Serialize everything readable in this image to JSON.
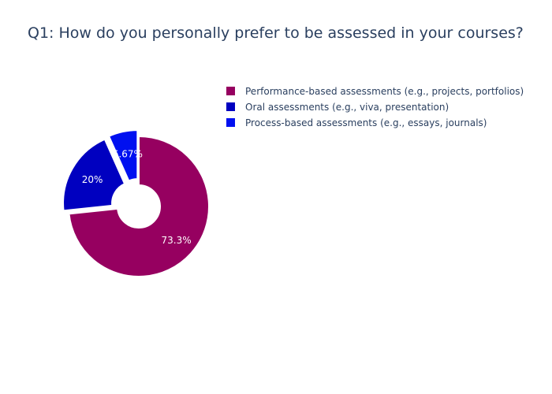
{
  "chart_data": {
    "type": "pie",
    "title": "Q1: How do you personally prefer to be assessed in your courses?",
    "hole": true,
    "legend_position": "top-right",
    "slices": [
      {
        "label": "Performance-based assessments (e.g., projects, portfolios)",
        "value": 73.3,
        "percent_text": "73.3%",
        "color": "#960060",
        "pulled": false
      },
      {
        "label": "Oral assessments (e.g., viva, presentation)",
        "value": 20,
        "percent_text": "20%",
        "color": "#0000c0",
        "pulled": true
      },
      {
        "label": "Process-based assessments (e.g., essays, journals)",
        "value": 6.67,
        "percent_text": "6.67%",
        "color": "#0010f0",
        "pulled": true
      }
    ]
  }
}
